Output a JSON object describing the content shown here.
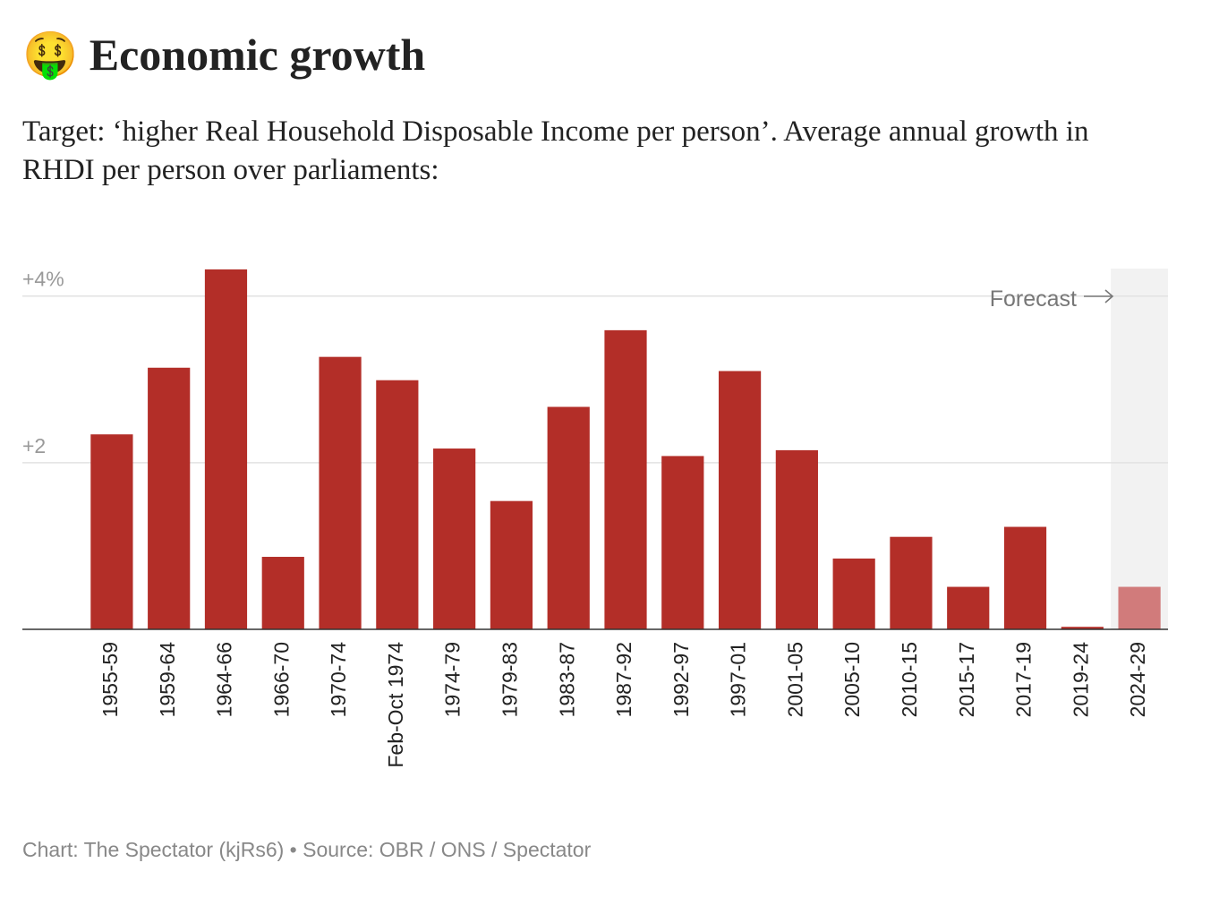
{
  "chart_data": {
    "type": "bar",
    "title": "🤑 Economic growth",
    "subtitle": "Target: ‘higher Real Household Disposable Income per person’. Average annual growth in RHDI per person over parliaments:",
    "footer": "Chart: The Spectator (kjRs6) • Source: OBR / ONS / Spectator",
    "categories": [
      "1955-59",
      "1959-64",
      "1964-66",
      "1966-70",
      "1970-74",
      "Feb-Oct 1974",
      "1974-79",
      "1979-83",
      "1983-87",
      "1987-92",
      "1992-97",
      "1997-01",
      "2001-05",
      "2005-10",
      "2010-15",
      "2015-17",
      "2017-19",
      "2019-24",
      "2024-29"
    ],
    "values": [
      2.34,
      3.14,
      4.32,
      0.87,
      3.27,
      2.99,
      2.17,
      1.54,
      2.67,
      3.59,
      2.08,
      3.1,
      2.15,
      0.85,
      1.11,
      0.51,
      1.23,
      0.03,
      0.51
    ],
    "color": "#b32e28",
    "forecast": {
      "label": "Forecast",
      "from": "2024-29",
      "color": "#d17b7b",
      "background": "#f2f2f2"
    },
    "ylim": [
      0,
      4.33
    ],
    "yticks": [
      {
        "value": 2,
        "label": "+2"
      },
      {
        "value": 4,
        "label": "+4%"
      }
    ],
    "grid": true
  }
}
